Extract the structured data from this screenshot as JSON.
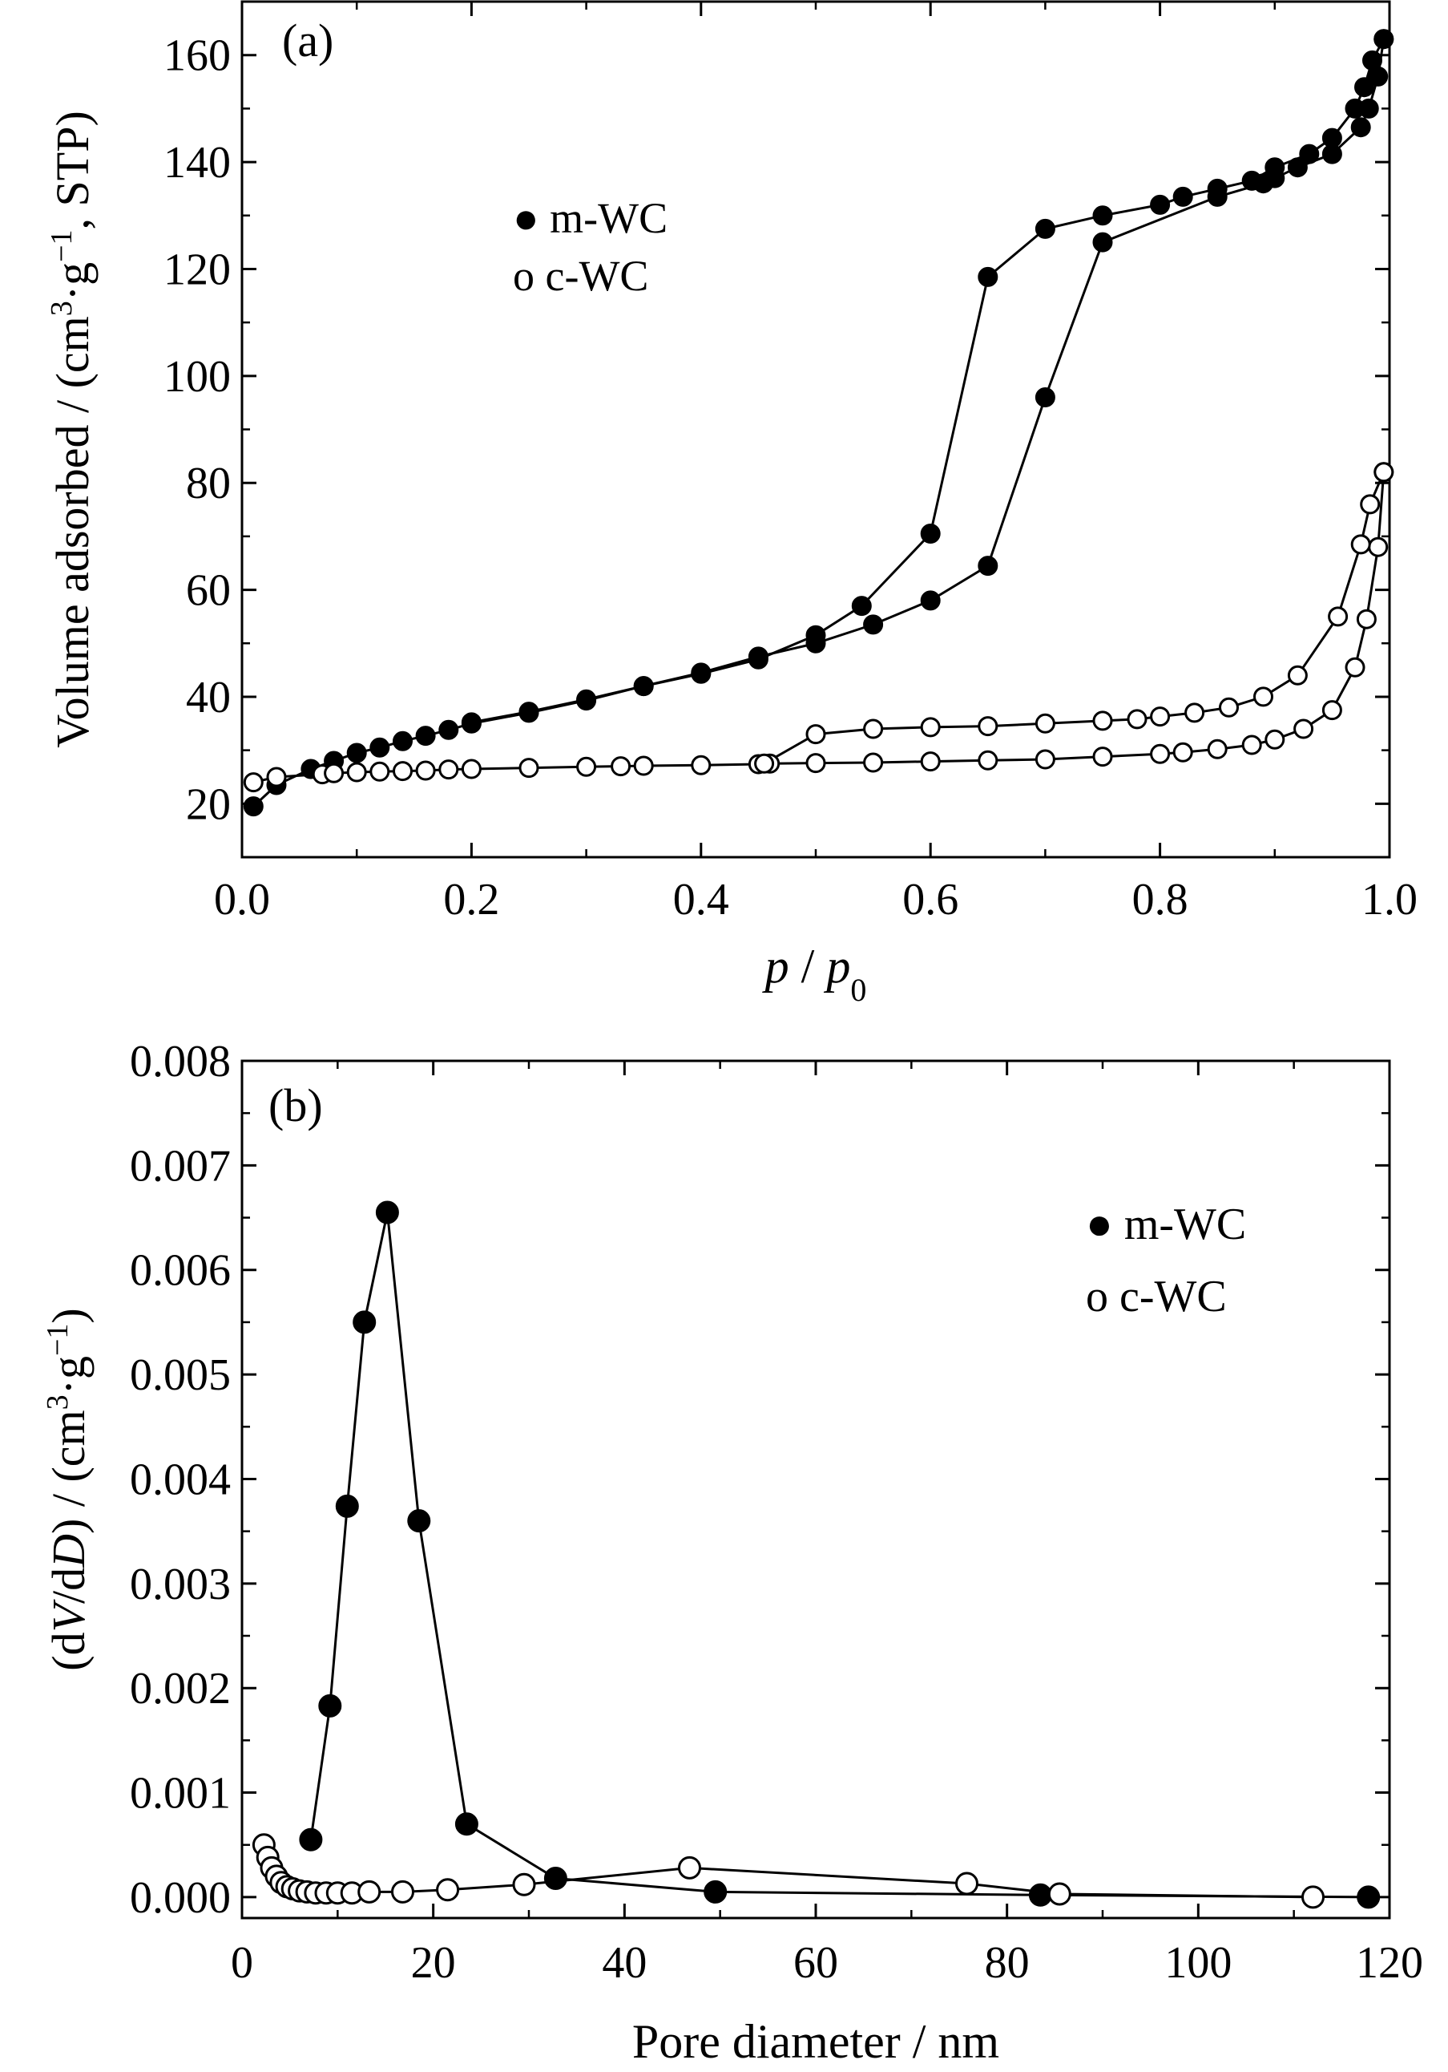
{
  "chart_data": [
    {
      "panel_label": "(a)",
      "type": "line",
      "xlim": [
        0.0,
        1.0
      ],
      "ylim": [
        10,
        170
      ],
      "xticks": [
        0.0,
        0.2,
        0.4,
        0.6,
        0.8,
        1.0
      ],
      "xtick_labels": [
        "0.0",
        "0.2",
        "0.4",
        "0.6",
        "0.8",
        "1.0"
      ],
      "yticks": [
        20,
        40,
        60,
        80,
        100,
        120,
        140,
        160
      ],
      "ytick_labels": [
        "20",
        "40",
        "60",
        "80",
        "100",
        "120",
        "140",
        "160"
      ],
      "xlabel_parts": [
        "p",
        " / ",
        "p",
        "0"
      ],
      "ylabel_parts": [
        "Volume adsorbed / (cm",
        "3",
        "·g",
        "−1",
        ", STP)"
      ],
      "legend": [
        {
          "marker": "filled",
          "symbol": "●",
          "label": "m-WC"
        },
        {
          "marker": "open",
          "symbol": "o",
          "label": "c-WC"
        }
      ],
      "legend_position": "upper-left",
      "series": [
        {
          "marker": "filled",
          "curves": [
            [
              [
                0.01,
                19.5
              ],
              [
                0.03,
                23.5
              ],
              [
                0.06,
                26.5
              ],
              [
                0.08,
                28
              ],
              [
                0.1,
                29.5
              ],
              [
                0.12,
                30.5
              ],
              [
                0.14,
                31.7
              ],
              [
                0.16,
                32.7
              ],
              [
                0.18,
                33.8
              ],
              [
                0.2,
                35
              ],
              [
                0.25,
                37
              ],
              [
                0.3,
                39.3
              ],
              [
                0.35,
                42
              ],
              [
                0.4,
                44.3
              ],
              [
                0.45,
                47
              ],
              [
                0.5,
                51.5
              ],
              [
                0.54,
                57
              ],
              [
                0.6,
                70.5
              ],
              [
                0.65,
                118.5
              ],
              [
                0.7,
                127.5
              ],
              [
                0.75,
                130
              ],
              [
                0.8,
                132
              ],
              [
                0.82,
                133.5
              ],
              [
                0.85,
                135
              ],
              [
                0.88,
                136.5
              ],
              [
                0.9,
                139
              ],
              [
                0.93,
                141.5
              ],
              [
                0.95,
                144.5
              ],
              [
                0.97,
                150
              ],
              [
                0.978,
                154
              ],
              [
                0.985,
                159
              ],
              [
                0.995,
                163
              ]
            ],
            [
              [
                0.995,
                163
              ],
              [
                0.99,
                156
              ],
              [
                0.982,
                150
              ],
              [
                0.975,
                146.5
              ],
              [
                0.95,
                141.5
              ],
              [
                0.92,
                139
              ],
              [
                0.9,
                137
              ],
              [
                0.89,
                136
              ],
              [
                0.85,
                133.5
              ],
              [
                0.75,
                125
              ],
              [
                0.7,
                96
              ],
              [
                0.65,
                64.5
              ],
              [
                0.6,
                58
              ],
              [
                0.55,
                53.5
              ],
              [
                0.5,
                50
              ],
              [
                0.45,
                47.5
              ],
              [
                0.4,
                44.5
              ],
              [
                0.35,
                42
              ],
              [
                0.3,
                39.5
              ],
              [
                0.25,
                37.2
              ],
              [
                0.2,
                35.2
              ]
            ]
          ]
        },
        {
          "marker": "open",
          "curves": [
            [
              [
                0.01,
                24
              ],
              [
                0.03,
                25
              ],
              [
                0.07,
                25.5
              ],
              [
                0.08,
                25.7
              ],
              [
                0.1,
                25.9
              ],
              [
                0.12,
                26
              ],
              [
                0.14,
                26.1
              ],
              [
                0.16,
                26.2
              ],
              [
                0.18,
                26.4
              ],
              [
                0.2,
                26.5
              ],
              [
                0.25,
                26.7
              ],
              [
                0.3,
                26.9
              ],
              [
                0.33,
                27
              ],
              [
                0.35,
                27.1
              ],
              [
                0.4,
                27.2
              ],
              [
                0.45,
                27.4
              ],
              [
                0.46,
                27.5
              ],
              [
                0.5,
                27.6
              ],
              [
                0.55,
                27.7
              ],
              [
                0.6,
                27.9
              ],
              [
                0.65,
                28.1
              ],
              [
                0.7,
                28.3
              ],
              [
                0.75,
                28.8
              ],
              [
                0.8,
                29.3
              ],
              [
                0.82,
                29.6
              ],
              [
                0.85,
                30.2
              ],
              [
                0.88,
                31
              ],
              [
                0.9,
                32
              ],
              [
                0.925,
                34
              ],
              [
                0.95,
                37.5
              ],
              [
                0.97,
                45.5
              ],
              [
                0.98,
                54.5
              ],
              [
                0.99,
                68
              ],
              [
                0.995,
                82
              ]
            ],
            [
              [
                0.995,
                82
              ],
              [
                0.983,
                76
              ],
              [
                0.975,
                68.5
              ],
              [
                0.955,
                55
              ],
              [
                0.92,
                44
              ],
              [
                0.89,
                40
              ],
              [
                0.86,
                38
              ],
              [
                0.83,
                37
              ],
              [
                0.8,
                36.3
              ],
              [
                0.78,
                35.8
              ],
              [
                0.75,
                35.5
              ],
              [
                0.7,
                35
              ],
              [
                0.65,
                34.5
              ],
              [
                0.6,
                34.3
              ],
              [
                0.55,
                34
              ],
              [
                0.5,
                33
              ],
              [
                0.455,
                27.5
              ]
            ]
          ]
        }
      ]
    },
    {
      "panel_label": "(b)",
      "type": "line",
      "xlim": [
        0,
        120
      ],
      "ylim": [
        -0.0002,
        0.008
      ],
      "xticks": [
        0,
        20,
        40,
        60,
        80,
        100,
        120
      ],
      "xtick_labels": [
        "0",
        "20",
        "40",
        "60",
        "80",
        "100",
        "120"
      ],
      "yticks": [
        0.0,
        0.001,
        0.002,
        0.003,
        0.004,
        0.005,
        0.006,
        0.007,
        0.008
      ],
      "ytick_labels": [
        "0.000",
        "0.001",
        "0.002",
        "0.003",
        "0.004",
        "0.005",
        "0.006",
        "0.007",
        "0.008"
      ],
      "xlabel": "Pore diameter / nm",
      "ylabel_parts": [
        "(d",
        "V",
        "/d",
        "D",
        ") / (cm",
        "3",
        "·g",
        "−1",
        ")"
      ],
      "legend": [
        {
          "marker": "filled",
          "symbol": "●",
          "label": "m-WC"
        },
        {
          "marker": "open",
          "symbol": "o",
          "label": "c-WC"
        }
      ],
      "legend_position": "upper-right",
      "series": [
        {
          "marker": "filled",
          "curves": [
            [
              [
                7.2,
                0.00055
              ],
              [
                9.2,
                0.00183
              ],
              [
                11,
                0.00374
              ],
              [
                12.8,
                0.0055
              ],
              [
                15.2,
                0.00655
              ],
              [
                18.5,
                0.0036
              ],
              [
                23.5,
                0.0007
              ],
              [
                32.8,
                0.00018
              ],
              [
                49.5,
                5e-05
              ],
              [
                83.5,
                2e-05
              ],
              [
                117.8,
                0.0
              ]
            ]
          ]
        },
        {
          "marker": "open",
          "curves": [
            [
              [
                2.3,
                0.0005
              ],
              [
                2.7,
                0.00038
              ],
              [
                3.1,
                0.00028
              ],
              [
                3.6,
                0.0002
              ],
              [
                4.1,
                0.00014
              ],
              [
                4.7,
                0.0001
              ],
              [
                5.3,
                8e-05
              ],
              [
                6,
                6e-05
              ],
              [
                6.8,
                5e-05
              ],
              [
                7.7,
                4e-05
              ],
              [
                8.8,
                4e-05
              ],
              [
                10,
                4e-05
              ],
              [
                11.5,
                4e-05
              ],
              [
                13.3,
                5e-05
              ],
              [
                16.8,
                5e-05
              ],
              [
                21.5,
                7e-05
              ],
              [
                29.5,
                0.00012
              ],
              [
                46.8,
                0.00028
              ],
              [
                75.8,
                0.00013
              ],
              [
                85.5,
                3e-05
              ],
              [
                112,
                0.0
              ]
            ]
          ]
        }
      ]
    }
  ]
}
